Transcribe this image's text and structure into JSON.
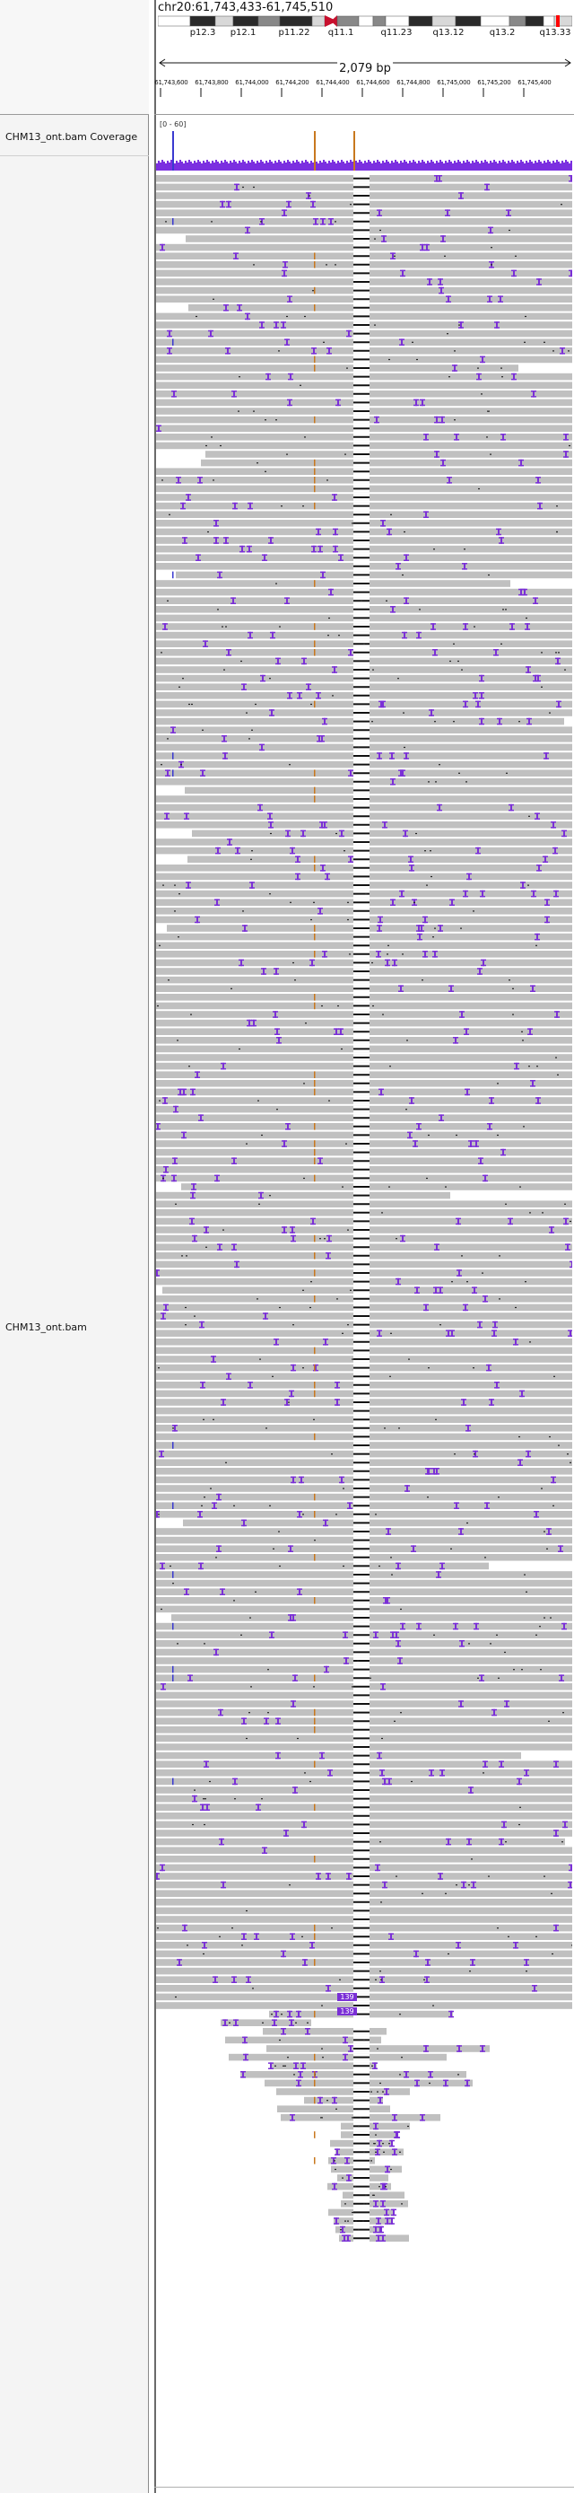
{
  "header": {
    "locus": "chr20:61,743,433-61,745,510",
    "span": "2,079 bp"
  },
  "ideogram": {
    "bands": [
      "p12.3",
      "p12.1",
      "p11.22",
      "q11.1",
      "q11.23",
      "q13.12",
      "q13.2",
      "q13.33"
    ],
    "band_colors": {
      "dark": "#2a2a2a",
      "mid": "#888888",
      "light": "#d8d8d8",
      "white": "#ffffff",
      "centromere": "#c8102e",
      "highlight": "#ff0000"
    }
  },
  "ruler": {
    "tick_labels": [
      "61,743,600",
      "61,743,800",
      "61,744,000",
      "61,744,200",
      "61,744,400",
      "61,744,600",
      "61,744,800",
      "61,745,000",
      "61,745,200",
      "61,745,400"
    ]
  },
  "tracks": {
    "coverage": {
      "name": "CHM13_ont.bam Coverage",
      "range": "[0 - 60]"
    },
    "alignment": {
      "name": "CHM13_ont.bam",
      "insertion_labels": [
        "139",
        "139"
      ]
    }
  },
  "colors": {
    "read": "#c0c0c0",
    "coverage": "#7b2fe0",
    "insertion": "#7a2fd6",
    "deletion_line": "#111111",
    "mismatch_orange": "#c8781e",
    "mismatch_blue": "#3a3ad0",
    "mismatch_green": "#3ca03c"
  }
}
